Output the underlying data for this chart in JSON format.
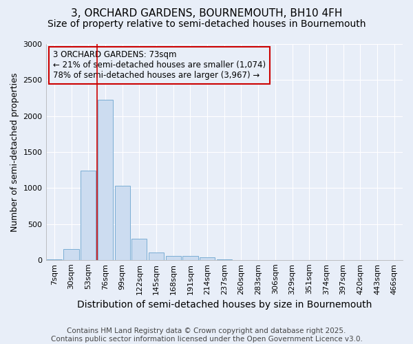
{
  "title1": "3, ORCHARD GARDENS, BOURNEMOUTH, BH10 4FH",
  "title2": "Size of property relative to semi-detached houses in Bournemouth",
  "xlabel": "Distribution of semi-detached houses by size in Bournemouth",
  "ylabel": "Number of semi-detached properties",
  "categories": [
    "7sqm",
    "30sqm",
    "53sqm",
    "76sqm",
    "99sqm",
    "122sqm",
    "145sqm",
    "168sqm",
    "191sqm",
    "214sqm",
    "237sqm",
    "260sqm",
    "283sqm",
    "306sqm",
    "329sqm",
    "351sqm",
    "374sqm",
    "397sqm",
    "420sqm",
    "443sqm",
    "466sqm"
  ],
  "values": [
    10,
    150,
    1240,
    2230,
    1030,
    290,
    100,
    55,
    55,
    40,
    10,
    0,
    0,
    0,
    0,
    0,
    0,
    0,
    0,
    0,
    0
  ],
  "bar_color": "#ccdcf0",
  "bar_edge_color": "#7aadd4",
  "vline_x_index": 2.5,
  "vline_color": "#cc0000",
  "annotation_text": "3 ORCHARD GARDENS: 73sqm\n← 21% of semi-detached houses are smaller (1,074)\n78% of semi-detached houses are larger (3,967) →",
  "annotation_box_color": "#cc0000",
  "ylim": [
    0,
    3000
  ],
  "yticks": [
    0,
    500,
    1000,
    1500,
    2000,
    2500,
    3000
  ],
  "bg_color": "#e8eef8",
  "grid_color": "#ffffff",
  "footer": "Contains HM Land Registry data © Crown copyright and database right 2025.\nContains public sector information licensed under the Open Government Licence v3.0.",
  "title1_fontsize": 11,
  "title2_fontsize": 10,
  "xlabel_fontsize": 10,
  "ylabel_fontsize": 9,
  "tick_fontsize": 8,
  "annotation_fontsize": 8.5,
  "footer_fontsize": 7.5
}
